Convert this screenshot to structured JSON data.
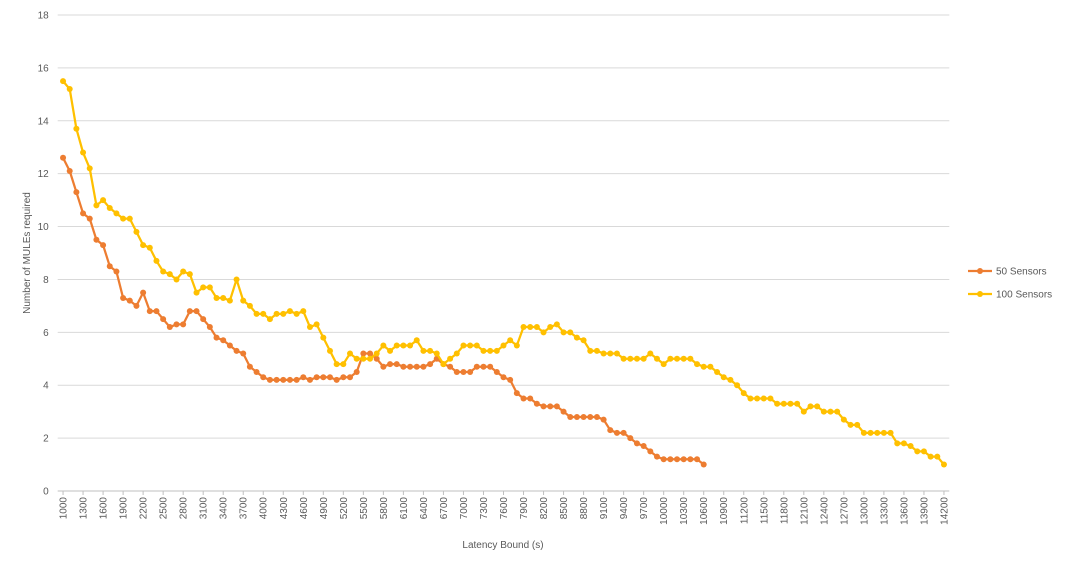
{
  "chart_data": {
    "type": "line",
    "xlabel": "Latency Bound (s)",
    "ylabel": "Number of MULEs required",
    "x": [
      1000,
      1100,
      1200,
      1300,
      1400,
      1500,
      1600,
      1700,
      1800,
      1900,
      2000,
      2100,
      2200,
      2300,
      2400,
      2500,
      2600,
      2700,
      2800,
      2900,
      3000,
      3100,
      3200,
      3300,
      3400,
      3500,
      3600,
      3700,
      3800,
      3900,
      4000,
      4100,
      4200,
      4300,
      4400,
      4500,
      4600,
      4700,
      4800,
      4900,
      5000,
      5100,
      5200,
      5300,
      5400,
      5500,
      5600,
      5700,
      5800,
      5900,
      6000,
      6100,
      6200,
      6300,
      6400,
      6500,
      6600,
      6700,
      6800,
      6900,
      7000,
      7100,
      7200,
      7300,
      7400,
      7500,
      7600,
      7700,
      7800,
      7900,
      8000,
      8100,
      8200,
      8300,
      8400,
      8500,
      8600,
      8700,
      8800,
      8900,
      9000,
      9100,
      9200,
      9300,
      9400,
      9500,
      9600,
      9700,
      9800,
      9900,
      10000,
      10100,
      10200,
      10300,
      10400,
      10500,
      10600,
      10700,
      10800,
      10900,
      11000,
      11100,
      11200,
      11300,
      11400,
      11500,
      11600,
      11700,
      11800,
      11900,
      12000,
      12100,
      12200,
      12300,
      12400,
      12500,
      12600,
      12700,
      12800,
      12900,
      13000,
      13100,
      13200,
      13300,
      13400,
      13500,
      13600,
      13700,
      13800,
      13900,
      14000,
      14100,
      14200
    ],
    "series": [
      {
        "name": "50 Sensors",
        "color": "#ed7d31",
        "values": [
          12.6,
          12.1,
          11.3,
          10.5,
          10.3,
          9.5,
          9.3,
          8.5,
          8.3,
          7.3,
          7.2,
          7.0,
          7.5,
          6.8,
          6.8,
          6.5,
          6.2,
          6.3,
          6.3,
          6.8,
          6.8,
          6.5,
          6.2,
          5.8,
          5.7,
          5.5,
          5.3,
          5.2,
          4.7,
          4.5,
          4.3,
          4.2,
          4.2,
          4.2,
          4.2,
          4.2,
          4.3,
          4.2,
          4.3,
          4.3,
          4.3,
          4.2,
          4.3,
          4.3,
          4.5,
          5.2,
          5.2,
          5.0,
          4.7,
          4.8,
          4.8,
          4.7,
          4.7,
          4.7,
          4.7,
          4.8,
          5.0,
          4.8,
          4.7,
          4.5,
          4.5,
          4.5,
          4.7,
          4.7,
          4.7,
          4.5,
          4.3,
          4.2,
          3.7,
          3.5,
          3.5,
          3.3,
          3.2,
          3.2,
          3.2,
          3.0,
          2.8,
          2.8,
          2.8,
          2.8,
          2.8,
          2.7,
          2.3,
          2.2,
          2.2,
          2.0,
          1.8,
          1.7,
          1.5,
          1.3,
          1.2,
          1.2,
          1.2,
          1.2,
          1.2,
          1.2,
          1.0,
          null,
          null,
          null,
          null,
          null,
          null,
          null,
          null,
          null,
          null,
          null,
          null,
          null,
          null,
          null,
          null,
          null,
          null,
          null,
          null,
          null,
          null,
          null,
          null,
          null,
          null,
          null,
          null,
          null,
          null,
          null,
          null,
          null,
          null,
          null,
          null
        ]
      },
      {
        "name": "100 Sensors",
        "color": "#ffc000",
        "values": [
          15.5,
          15.2,
          13.7,
          12.8,
          12.2,
          10.8,
          11.0,
          10.7,
          10.5,
          10.3,
          10.3,
          9.8,
          9.3,
          9.2,
          8.7,
          8.3,
          8.2,
          8.0,
          8.3,
          8.2,
          7.5,
          7.7,
          7.7,
          7.3,
          7.3,
          7.2,
          8.0,
          7.2,
          7.0,
          6.7,
          6.7,
          6.5,
          6.7,
          6.7,
          6.8,
          6.7,
          6.8,
          6.2,
          6.3,
          5.8,
          5.3,
          4.8,
          4.8,
          5.2,
          5.0,
          5.0,
          5.0,
          5.2,
          5.5,
          5.3,
          5.5,
          5.5,
          5.5,
          5.7,
          5.3,
          5.3,
          5.2,
          4.8,
          5.0,
          5.2,
          5.5,
          5.5,
          5.5,
          5.3,
          5.3,
          5.3,
          5.5,
          5.7,
          5.5,
          6.2,
          6.2,
          6.2,
          6.0,
          6.2,
          6.3,
          6.0,
          6.0,
          5.8,
          5.7,
          5.3,
          5.3,
          5.2,
          5.2,
          5.2,
          5.0,
          5.0,
          5.0,
          5.0,
          5.2,
          5.0,
          4.8,
          5.0,
          5.0,
          5.0,
          5.0,
          4.8,
          4.7,
          4.7,
          4.5,
          4.3,
          4.2,
          4.0,
          3.7,
          3.5,
          3.5,
          3.5,
          3.5,
          3.3,
          3.3,
          3.3,
          3.3,
          3.0,
          3.2,
          3.2,
          3.0,
          3.0,
          3.0,
          2.7,
          2.5,
          2.5,
          2.2,
          2.2,
          2.2,
          2.2,
          2.2,
          1.8,
          1.8,
          1.7,
          1.5,
          1.5,
          1.3,
          1.3,
          1.0
        ]
      }
    ],
    "xlim": [
      920,
      14280
    ],
    "xticks": [
      1000,
      1300,
      1600,
      1900,
      2200,
      2500,
      2800,
      3100,
      3400,
      3700,
      4000,
      4300,
      4600,
      4900,
      5200,
      5500,
      5800,
      6100,
      6400,
      6700,
      7000,
      7300,
      7600,
      7900,
      8200,
      8500,
      8800,
      9100,
      9400,
      9700,
      10000,
      10300,
      10600,
      10900,
      11200,
      11500,
      11800,
      12100,
      12400,
      12700,
      13000,
      13300,
      13600,
      13900,
      14200
    ],
    "ylim": [
      0,
      18
    ],
    "yticks": [
      0,
      2,
      4,
      6,
      8,
      10,
      12,
      14,
      16,
      18
    ],
    "grid": true,
    "legend": "right"
  }
}
